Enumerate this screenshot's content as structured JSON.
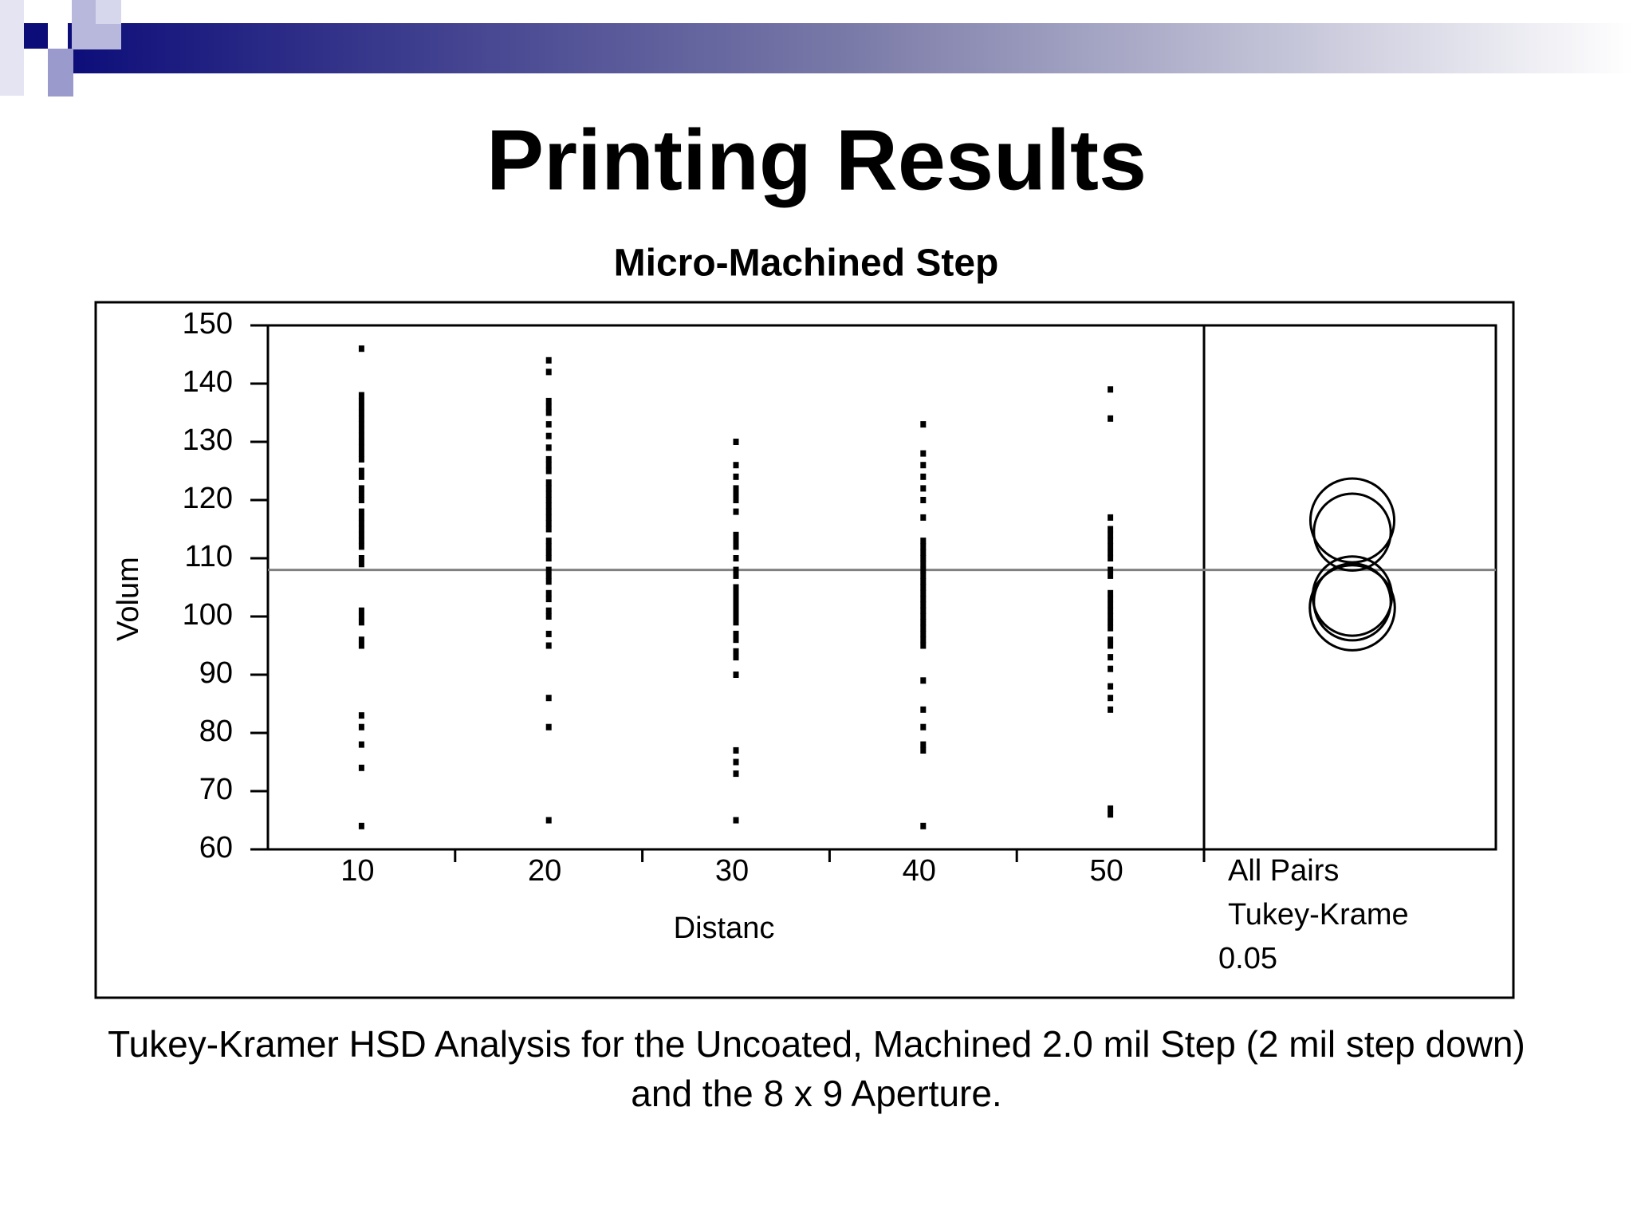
{
  "title": "Printing Results",
  "caption": "Tukey-Kramer HSD Analysis for the Uncoated, Machined 2.0 mil Step (2 mil step down) and the 8 x 9 Aperture.",
  "chart_data": {
    "type": "strip",
    "title": "Micro-Machined Step",
    "x_label": "Distanc",
    "y_label": "Volum",
    "categories": [
      "10",
      "20",
      "30",
      "40",
      "50"
    ],
    "groups": [
      {
        "values": [
          146,
          138,
          137,
          136,
          135,
          134,
          133,
          132,
          131,
          130,
          129,
          128,
          127,
          125,
          124,
          122,
          121,
          120,
          118,
          117,
          116,
          115,
          114,
          113,
          112,
          110,
          109,
          101,
          100,
          99,
          96,
          95,
          83,
          81,
          78,
          74,
          64
        ]
      },
      {
        "values": [
          144,
          142,
          137,
          136,
          135,
          133,
          131,
          129,
          127,
          126,
          125,
          123,
          122,
          121,
          120,
          119,
          118,
          117,
          116,
          115,
          113,
          112,
          111,
          110,
          108,
          107,
          106,
          104,
          103,
          101,
          100,
          97,
          95,
          86,
          81,
          65
        ]
      },
      {
        "values": [
          130,
          126,
          124,
          122,
          121,
          120,
          118,
          114,
          113,
          112,
          110,
          108,
          107,
          105,
          104,
          103,
          102,
          101,
          100,
          99,
          97,
          96,
          94,
          93,
          90,
          77,
          75,
          73,
          65
        ]
      },
      {
        "values": [
          133,
          128,
          126,
          124,
          122,
          120,
          117,
          113,
          112,
          111,
          110,
          109,
          108,
          107,
          106,
          105,
          104,
          103,
          102,
          101,
          100,
          99,
          98,
          97,
          96,
          95,
          89,
          84,
          81,
          78,
          77,
          64
        ]
      },
      {
        "values": [
          139,
          134,
          117,
          115,
          114,
          113,
          112,
          111,
          110,
          108,
          107,
          104,
          103,
          102,
          101,
          100,
          99,
          98,
          96,
          95,
          93,
          91,
          88,
          86,
          84,
          67,
          66
        ]
      }
    ],
    "mean": 108,
    "ylim": [
      60,
      150
    ],
    "yticks": [
      60,
      70,
      80,
      90,
      100,
      110,
      120,
      130,
      140,
      150
    ],
    "comparison_labels": [
      "All Pairs",
      "Tukey-Krame"
    ],
    "alpha": 0.05,
    "circles": [
      {
        "center": 116.5,
        "radius": 7.2
      },
      {
        "center": 114.5,
        "radius": 6.6
      },
      {
        "center": 103.5,
        "radius": 6.8
      },
      {
        "center": 102.5,
        "radius": 6.6
      },
      {
        "center": 101.5,
        "radius": 7.3
      }
    ],
    "color": "#000000",
    "mean_color": "#808080"
  }
}
